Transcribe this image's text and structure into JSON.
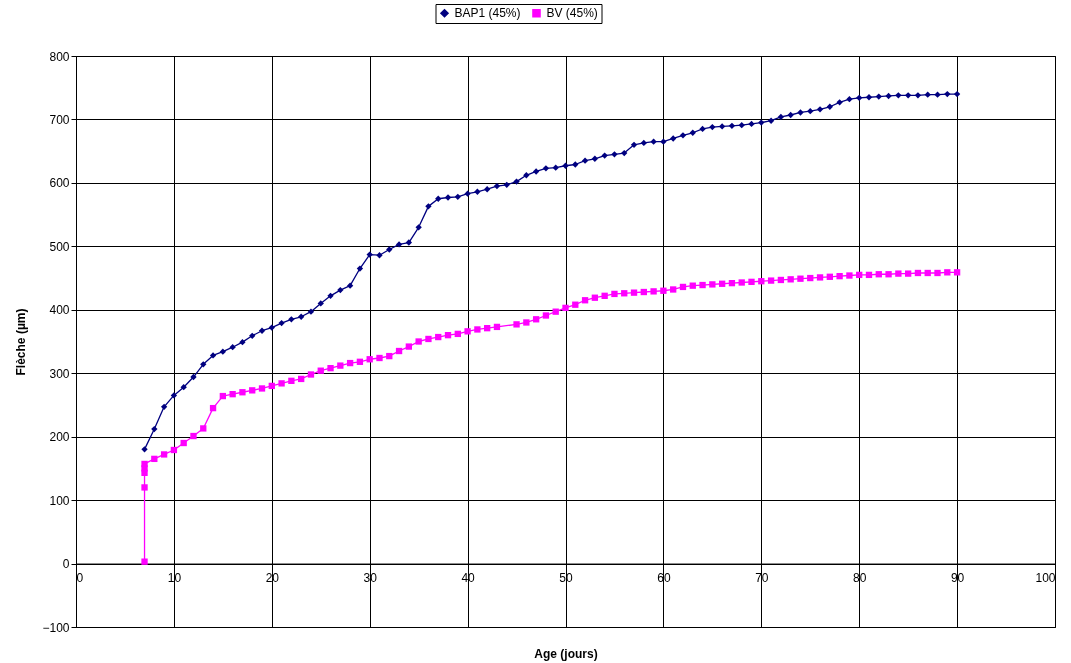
{
  "chart_data": {
    "type": "line",
    "xlabel": "Age (jours)",
    "ylabel": "Flèche (µm)",
    "xlim": [
      0,
      100
    ],
    "xticks": [
      0,
      10,
      20,
      30,
      40,
      50,
      60,
      70,
      80,
      90,
      100
    ],
    "ylim": [
      -100,
      800
    ],
    "yticks": [
      -100,
      0,
      100,
      200,
      300,
      400,
      500,
      600,
      700,
      800
    ],
    "grid": true,
    "legend": "top",
    "series": [
      {
        "name": "BAP1 (45%)",
        "color": "#000080",
        "marker": "diamond",
        "x": [
          7,
          8,
          9,
          10,
          11,
          12,
          13,
          14,
          15,
          16,
          17,
          18,
          19,
          20,
          21,
          22,
          23,
          24,
          25,
          26,
          27,
          28,
          29,
          30,
          31,
          32,
          33,
          34,
          35,
          36,
          37,
          38,
          39,
          40,
          41,
          42,
          43,
          44,
          45,
          46,
          47,
          48,
          49,
          50,
          51,
          52,
          53,
          54,
          55,
          56,
          57,
          58,
          59,
          60,
          61,
          62,
          63,
          64,
          65,
          66,
          67,
          68,
          69,
          70,
          71,
          72,
          73,
          74,
          75,
          76,
          77,
          78,
          79,
          80,
          81,
          82,
          83,
          84,
          85,
          86,
          87,
          88,
          89,
          90
        ],
        "values": [
          180,
          212,
          247,
          265,
          278,
          294,
          314,
          328,
          334,
          341,
          349,
          359,
          367,
          372,
          379,
          385,
          389,
          397,
          410,
          422,
          431,
          438,
          465,
          487,
          486,
          495,
          503,
          506,
          530,
          563,
          575,
          577,
          578,
          583,
          586,
          590,
          595,
          597,
          602,
          612,
          618,
          623,
          624,
          627,
          629,
          635,
          638,
          643,
          645,
          647,
          660,
          663,
          665,
          665,
          670,
          675,
          679,
          685,
          688,
          689,
          690,
          691,
          693,
          695,
          698,
          704,
          707,
          711,
          713,
          716,
          720,
          727,
          732,
          734,
          735,
          736,
          737,
          738,
          738,
          738,
          739,
          739,
          740,
          740
        ]
      },
      {
        "name": "BV (45%)",
        "color": "#ff00ff",
        "marker": "square",
        "x": [
          7,
          7,
          7,
          7,
          7,
          8,
          9,
          10,
          11,
          12,
          13,
          14,
          15,
          16,
          17,
          18,
          19,
          20,
          21,
          22,
          23,
          24,
          25,
          26,
          27,
          28,
          29,
          30,
          31,
          32,
          33,
          34,
          35,
          36,
          37,
          38,
          39,
          40,
          41,
          42,
          43,
          45,
          46,
          47,
          48,
          49,
          50,
          51,
          52,
          53,
          54,
          55,
          56,
          57,
          58,
          59,
          60,
          61,
          62,
          63,
          64,
          65,
          66,
          67,
          68,
          69,
          70,
          71,
          72,
          73,
          74,
          75,
          76,
          77,
          78,
          79,
          80,
          81,
          82,
          83,
          84,
          85,
          86,
          87,
          88,
          89,
          90
        ],
        "values": [
          3,
          120,
          143,
          150,
          157,
          165,
          172,
          179,
          190,
          201,
          213,
          245,
          264,
          267,
          270,
          273,
          276,
          280,
          284,
          288,
          291,
          298,
          304,
          308,
          312,
          316,
          318,
          322,
          324,
          327,
          335,
          342,
          350,
          354,
          357,
          360,
          362,
          366,
          369,
          371,
          373,
          377,
          380,
          385,
          391,
          397,
          403,
          408,
          415,
          419,
          422,
          425,
          426,
          427,
          428,
          429,
          430,
          432,
          436,
          438,
          439,
          440,
          441,
          442,
          443,
          444,
          445,
          446,
          447,
          448,
          449,
          450,
          451,
          452,
          453,
          454,
          455,
          455,
          456,
          456,
          457,
          457,
          458,
          458,
          458,
          459,
          459
        ]
      }
    ]
  }
}
